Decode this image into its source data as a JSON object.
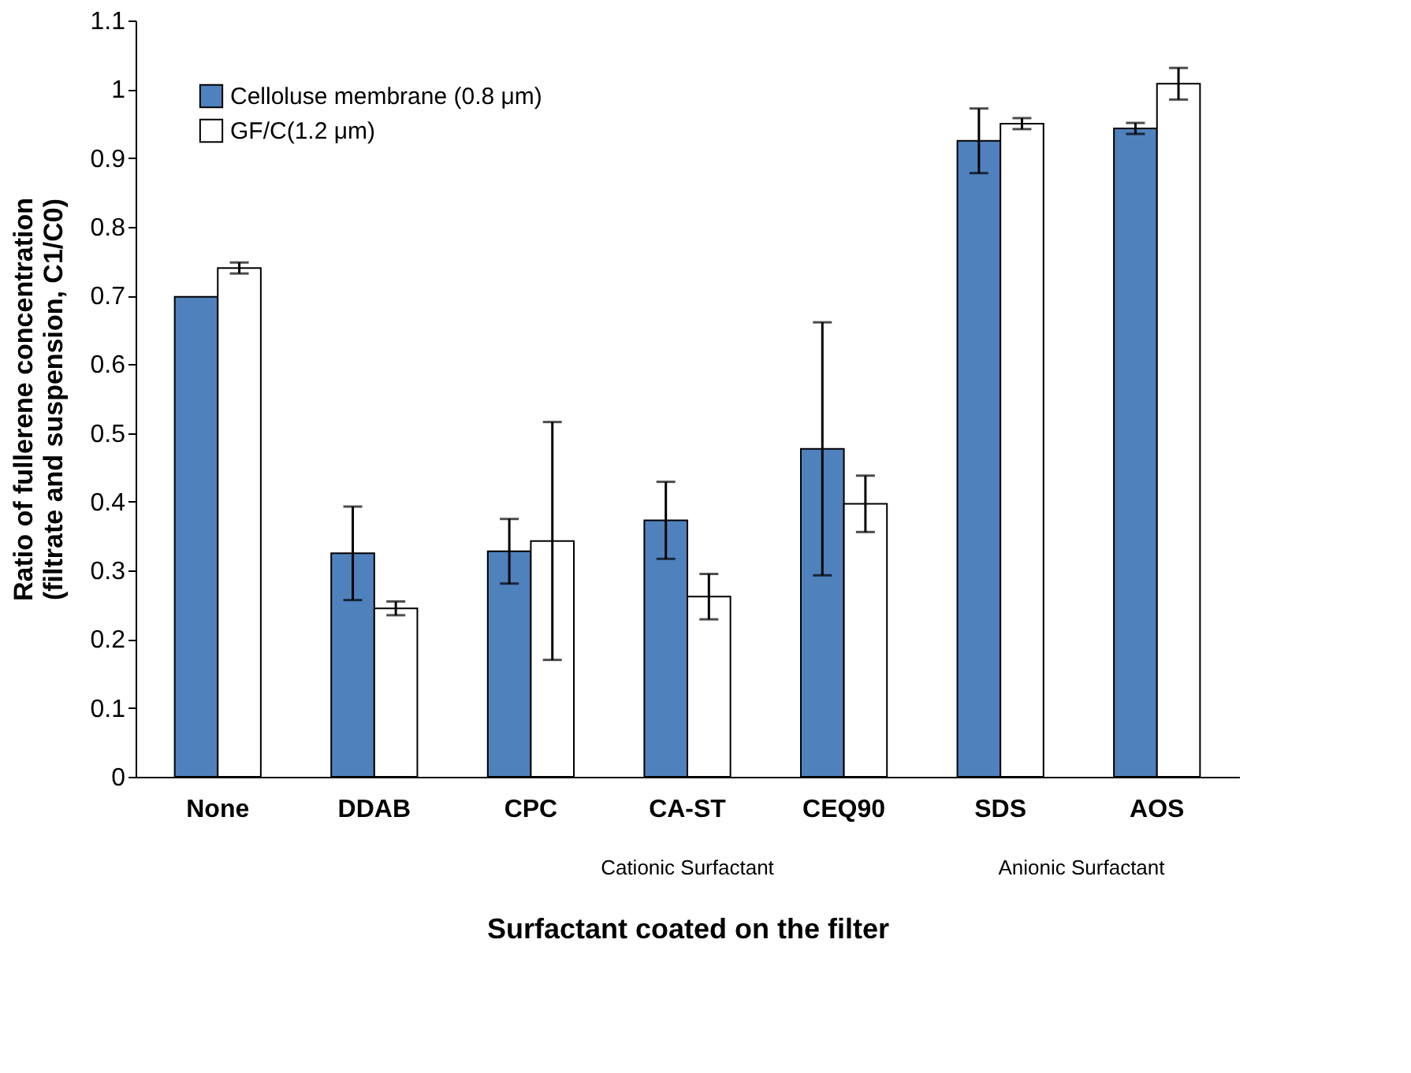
{
  "chart_data": {
    "type": "bar",
    "xlabel": "Surfactant coated on the filter",
    "ylabel": "Ratio of fullerene concentration\n(filtrate and suspension,  C1/C0)",
    "categories": [
      "None",
      "DDAB",
      "CPC",
      "CA-ST",
      "CEQ90",
      "SDS",
      "AOS"
    ],
    "series": [
      {
        "name": "Celloluse membrane (0.8 μm)",
        "color": "#4f81bd",
        "values": [
          0.698,
          0.325,
          0.328,
          0.373,
          0.477,
          0.925,
          0.943
        ],
        "errors": [
          null,
          0.068,
          0.047,
          0.056,
          0.184,
          0.047,
          0.008
        ]
      },
      {
        "name": "GF/C(1.2 μm)",
        "color": "#ffffff",
        "values": [
          0.74,
          0.245,
          0.343,
          0.262,
          0.397,
          0.95,
          1.008
        ],
        "errors": [
          0.008,
          0.01,
          0.173,
          0.033,
          0.041,
          0.008,
          0.023
        ]
      }
    ],
    "ylim": [
      0,
      1.1
    ],
    "yticks": [
      0,
      0.1,
      0.2,
      0.3,
      0.4,
      0.5,
      0.6,
      0.7,
      0.8,
      0.9,
      1,
      1.1
    ],
    "annotations": [
      "Cationic Surfactant",
      "Anionic Surfactant"
    ],
    "legend": "top left",
    "grid": false
  }
}
